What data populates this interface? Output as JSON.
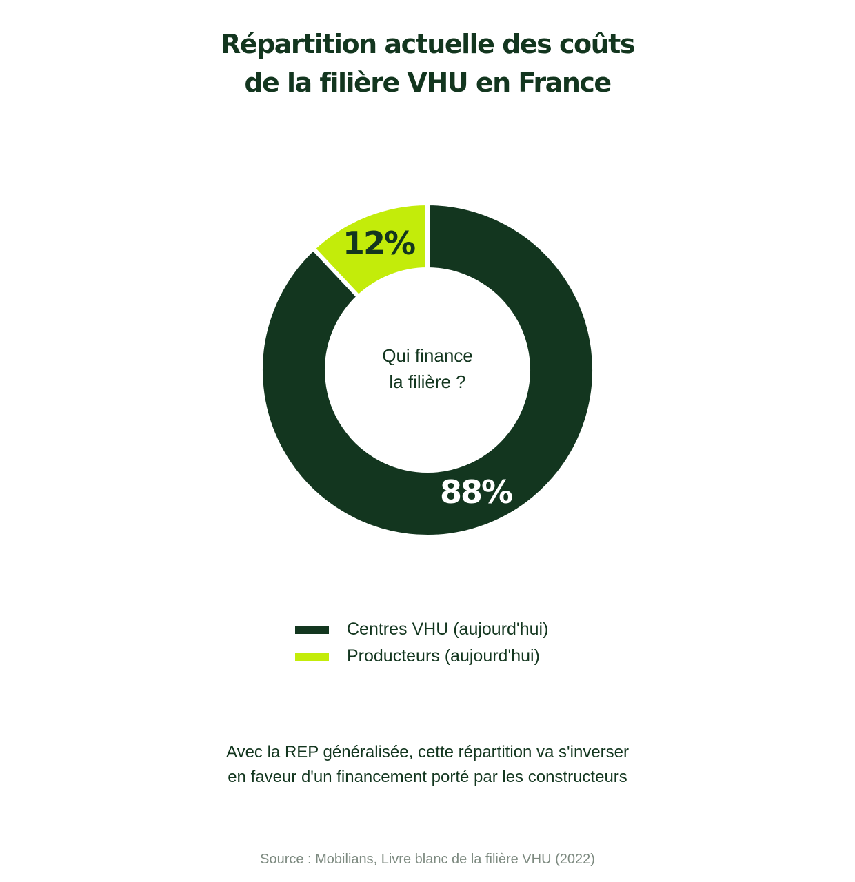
{
  "title": {
    "line1": "Répartition actuelle des coûts",
    "line2": "de la filière VHU en France"
  },
  "chart_data": {
    "type": "pie",
    "variant": "donut",
    "center_label": [
      "Qui finance",
      "la filière ?"
    ],
    "slices": [
      {
        "name": "Centres VHU (aujourd'hui)",
        "value": 88,
        "label": "88%",
        "color": "#13361f",
        "label_color": "#ffffff"
      },
      {
        "name": "Producteurs (aujourd'hui)",
        "value": 12,
        "label": "12%",
        "color": "#c3ec0a",
        "label_color": "#13361f"
      }
    ],
    "legend_position": "bottom-center"
  },
  "legend": [
    {
      "label": "Centres VHU (aujourd'hui)",
      "color": "#13361f"
    },
    {
      "label": "Producteurs (aujourd'hui)",
      "color": "#c3ec0a"
    }
  ],
  "note": {
    "line1": "Avec la REP généralisée, cette répartition va s'inverser",
    "line2": "en faveur d'un financement porté par les constructeurs"
  },
  "source": "Source : Mobilians, Livre blanc de la filière VHU (2022)"
}
